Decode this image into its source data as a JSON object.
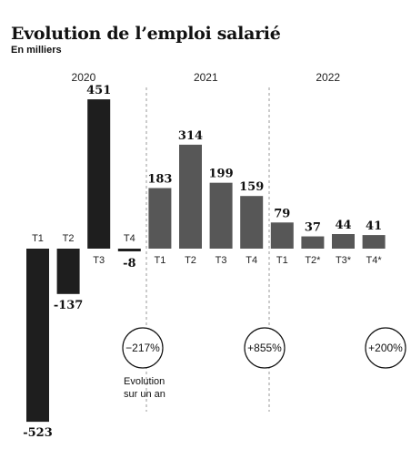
{
  "title": "Evolution de l’emploi salarié",
  "subtitle": "En milliers",
  "chart_data": {
    "type": "bar",
    "title": "Evolution de l’emploi salarié",
    "subtitle": "En milliers",
    "years": [
      "2020",
      "2021",
      "2022"
    ],
    "categories": [
      "T1",
      "T2",
      "T3",
      "T4",
      "T1",
      "T2",
      "T3",
      "T4",
      "T1",
      "T2*",
      "T3*",
      "T4*"
    ],
    "values": [
      -523,
      -137,
      451,
      -8,
      183,
      314,
      199,
      159,
      79,
      37,
      44,
      41
    ],
    "value_labels": [
      "-523",
      "-137",
      "451",
      "-8",
      "183",
      "314",
      "199",
      "159",
      "79",
      "37",
      "44",
      "41"
    ],
    "year_groups": [
      {
        "year": "2020",
        "start": 0,
        "end": 3
      },
      {
        "year": "2021",
        "start": 4,
        "end": 7
      },
      {
        "year": "2022",
        "start": 8,
        "end": 11
      }
    ],
    "annual_evolution": [
      "−217%",
      "+855%",
      "+200%"
    ],
    "annual_evolution_note": "Evolution sur un an",
    "colors": {
      "year_2020": "#1e1e1e",
      "year_2021": "#575757",
      "year_2022": "#575757",
      "separator": "#9a9a9a"
    },
    "grid": false,
    "legend": "none"
  }
}
